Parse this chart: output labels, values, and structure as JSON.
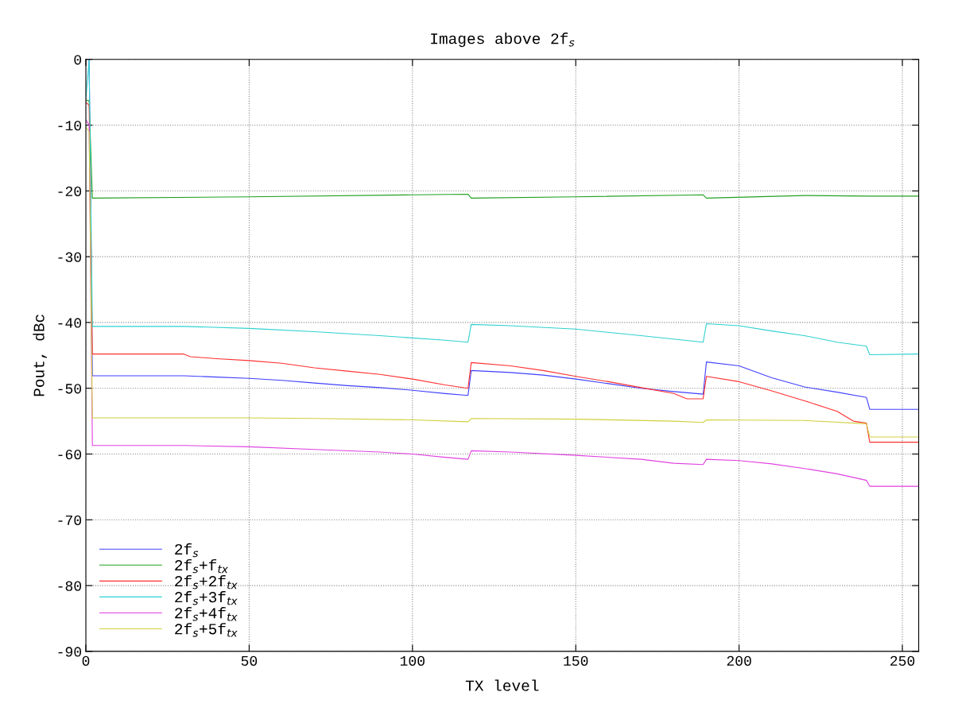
{
  "chart_data": {
    "type": "line",
    "title": "Images above 2f$_{s}$",
    "xlabel": "TX level",
    "ylabel": "Pout, dBc",
    "xlim": [
      0,
      255
    ],
    "ylim": [
      -90,
      0
    ],
    "xticks": [
      0,
      50,
      100,
      150,
      200,
      250
    ],
    "yticks": [
      -90,
      -80,
      -70,
      -60,
      -50,
      -40,
      -30,
      -20,
      -10,
      0
    ],
    "grid": true,
    "legend": "bottom left",
    "line_style": "solid",
    "marker": "none",
    "series": [
      {
        "name": "2f$_{s}$",
        "color": "#4040ff",
        "x": [
          1,
          2,
          30,
          40,
          50,
          60,
          70,
          80,
          90,
          100,
          110,
          117,
          118,
          130,
          140,
          150,
          160,
          170,
          180,
          189,
          190,
          200,
          205,
          210,
          220,
          230,
          239,
          240,
          255
        ],
        "values": [
          0,
          -48.1,
          -48.1,
          -48.3,
          -48.5,
          -48.8,
          -49.2,
          -49.6,
          -49.9,
          -50.3,
          -50.8,
          -51.1,
          -47.3,
          -47.6,
          -48.0,
          -48.6,
          -49.3,
          -50.0,
          -50.5,
          -50.9,
          -46.0,
          -46.6,
          -47.5,
          -48.4,
          -49.8,
          -50.6,
          -51.4,
          -53.2,
          -53.2
        ]
      },
      {
        "name": "2f$_{s}$+f$_{tx}$",
        "color": "#20a020",
        "x": [
          0,
          1,
          2,
          50,
          100,
          117,
          118,
          150,
          189,
          190,
          220,
          240,
          255
        ],
        "values": [
          -6.2,
          -6.3,
          -21.1,
          -20.9,
          -20.6,
          -20.5,
          -21.1,
          -20.9,
          -20.6,
          -21.1,
          -20.7,
          -20.8,
          -20.8
        ]
      },
      {
        "name": "2f$_{s}$+2f$_{tx}$",
        "color": "#ff3030",
        "x": [
          0,
          1,
          2,
          30,
          32,
          40,
          50,
          60,
          70,
          80,
          90,
          100,
          110,
          117,
          118,
          130,
          140,
          150,
          160,
          170,
          180,
          184,
          189,
          190,
          200,
          210,
          220,
          230,
          235,
          239,
          240,
          255
        ],
        "values": [
          -6.5,
          -7,
          -44.8,
          -44.8,
          -45.2,
          -45.5,
          -45.8,
          -46.2,
          -46.9,
          -47.4,
          -47.9,
          -48.6,
          -49.5,
          -50.0,
          -46.1,
          -46.6,
          -47.3,
          -48.2,
          -49.0,
          -49.9,
          -50.8,
          -51.6,
          -51.6,
          -48.2,
          -49.0,
          -50.4,
          -51.9,
          -53.5,
          -55.0,
          -55.3,
          -58.2,
          -58.2
        ]
      },
      {
        "name": "2f$_{s}$+3f$_{tx}$",
        "color": "#30d0d0",
        "x": [
          0,
          1,
          2,
          30,
          50,
          70,
          90,
          110,
          117,
          118,
          130,
          150,
          170,
          189,
          190,
          200,
          210,
          220,
          230,
          239,
          240,
          255
        ],
        "values": [
          -6.1,
          0,
          -40.6,
          -40.6,
          -40.9,
          -41.4,
          -42.0,
          -42.7,
          -43.0,
          -40.3,
          -40.5,
          -41.0,
          -42.0,
          -43.0,
          -40.2,
          -40.5,
          -41.3,
          -42.0,
          -43.0,
          -43.6,
          -44.9,
          -44.8
        ]
      },
      {
        "name": "2f$_{s}$+4f$_{tx}$",
        "color": "#e040e0",
        "x": [
          0,
          1,
          2,
          30,
          50,
          70,
          90,
          100,
          110,
          117,
          118,
          130,
          150,
          170,
          180,
          189,
          190,
          200,
          210,
          220,
          230,
          239,
          240,
          255
        ],
        "values": [
          -9.2,
          -10,
          -58.7,
          -58.7,
          -58.9,
          -59.3,
          -59.7,
          -60.0,
          -60.5,
          -60.8,
          -59.5,
          -59.7,
          -60.2,
          -60.8,
          -61.4,
          -61.6,
          -60.8,
          -61.0,
          -61.5,
          -62.2,
          -63.0,
          -64.0,
          -64.9,
          -64.9
        ]
      },
      {
        "name": "2f$_{s}$+5f$_{tx}$",
        "color": "#d0d040",
        "x": [
          0,
          1,
          2,
          50,
          70,
          100,
          117,
          118,
          150,
          180,
          189,
          190,
          220,
          239,
          240,
          255
        ],
        "values": [
          -10.3,
          -11,
          -54.5,
          -54.5,
          -54.6,
          -54.8,
          -55.1,
          -54.6,
          -54.7,
          -55.0,
          -55.2,
          -54.8,
          -54.9,
          -55.4,
          -57.4,
          -57.4
        ]
      }
    ]
  }
}
